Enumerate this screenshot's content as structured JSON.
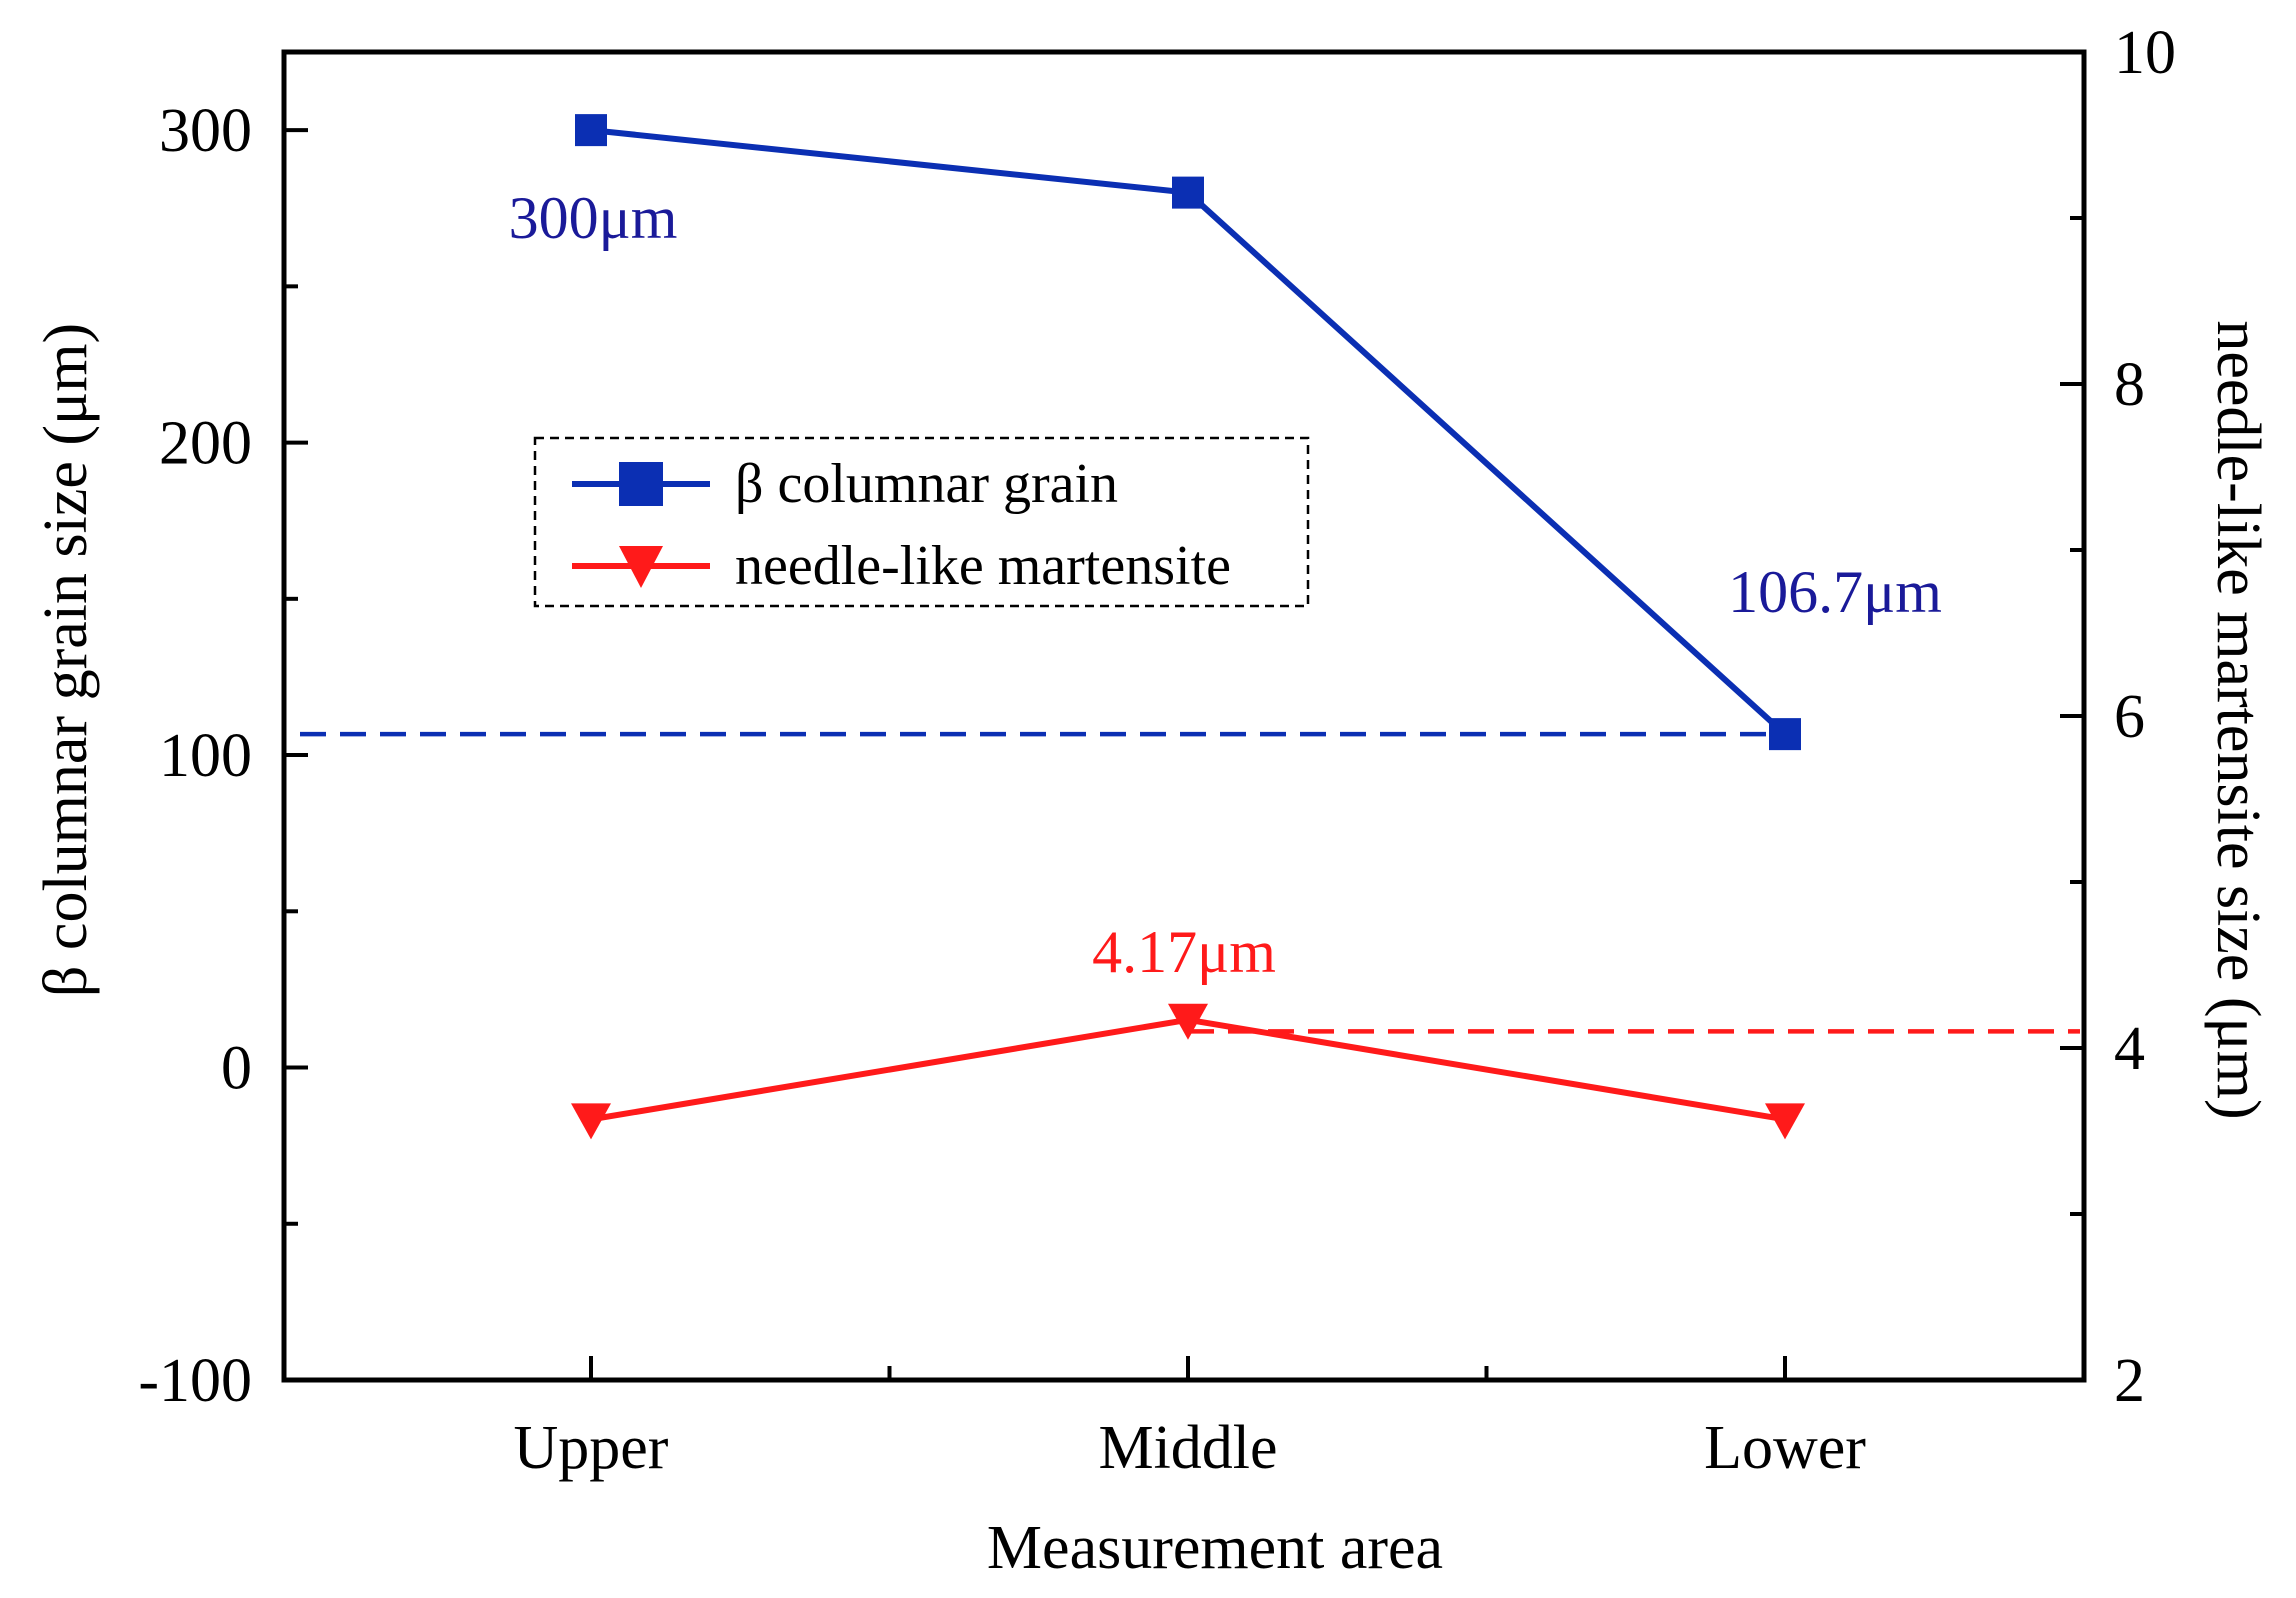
{
  "chart_data": {
    "type": "line",
    "xlabel": "Measurement area",
    "ylabel_left": "β columnar grain size (μm)",
    "ylabel_right": "needle-like martensite size  (μm)",
    "categories": [
      "Upper",
      "Middle",
      "Lower"
    ],
    "ylim_left": [
      -100,
      325
    ],
    "yticks_left": [
      -100,
      0,
      100,
      200,
      300
    ],
    "yticks_left_labels": [
      "-100",
      "0",
      "100",
      "200",
      "300"
    ],
    "ylim_right": [
      2,
      10
    ],
    "yticks_right": [
      2,
      4,
      6,
      8,
      10
    ],
    "yticks_right_labels": [
      "2",
      "4",
      "6",
      "8",
      "10"
    ],
    "series": [
      {
        "name": "β columnar grain",
        "axis": "left",
        "color": "#0b2fb3",
        "marker": "square",
        "values": [
          300,
          280,
          106.7
        ]
      },
      {
        "name": "needle-like martensite",
        "axis": "right",
        "color": "#ff1a1a",
        "marker": "triangle-down",
        "values": [
          3.57,
          4.17,
          3.57
        ]
      }
    ],
    "reference_lines": [
      {
        "axis": "left",
        "value": 106.7,
        "from_category": 0,
        "to_category": 2,
        "color": "#0b2fb3",
        "style": "dashed"
      },
      {
        "axis": "right",
        "value": 4.1,
        "from_category": 1,
        "to_category": "end",
        "color": "#ff1a1a",
        "style": "dashed"
      }
    ],
    "annotations": [
      {
        "text": "300μm",
        "color": "#1a1a99"
      },
      {
        "text": "106.7μm",
        "color": "#1a1a99"
      },
      {
        "text": "4.17μm",
        "color": "#ff1a1a"
      }
    ],
    "legend_position": "upper-left-center",
    "grid": false
  }
}
